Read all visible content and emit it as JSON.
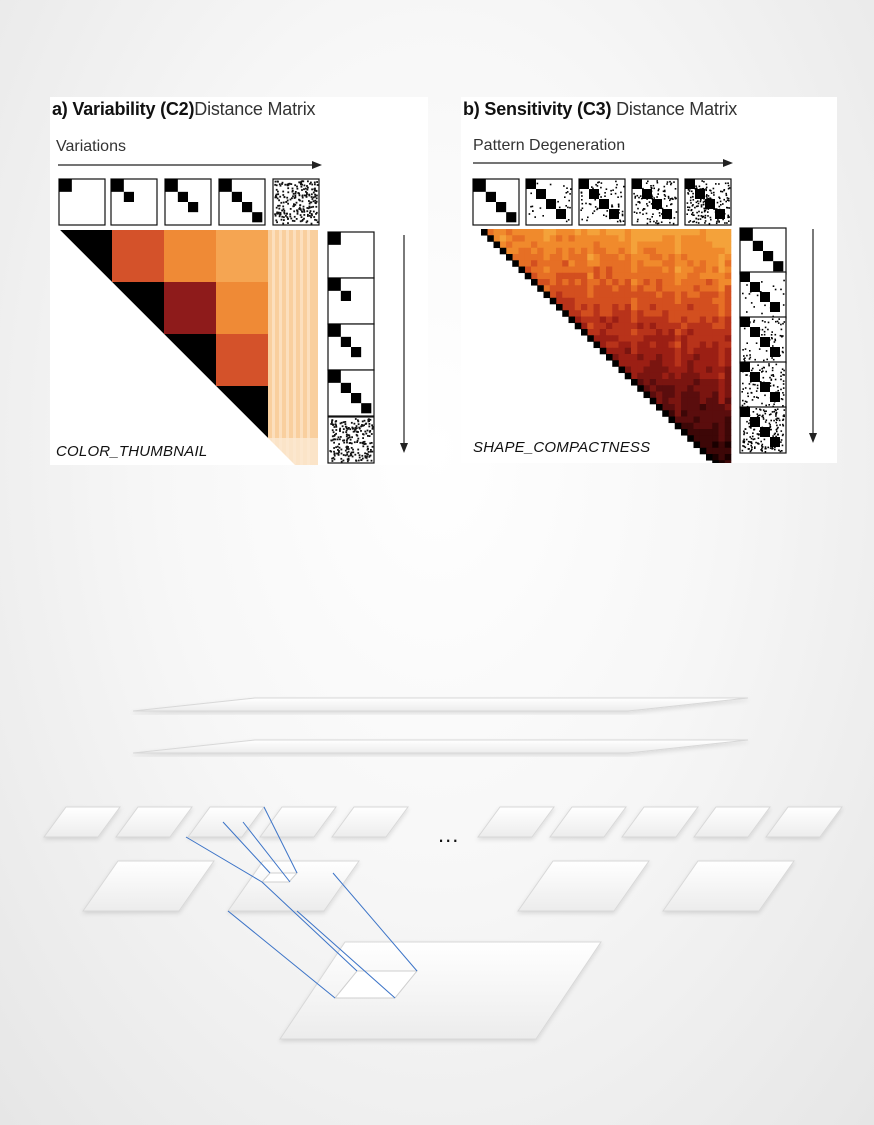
{
  "panel_a": {
    "title_letter": "a)",
    "title_bold": "Variability (C2)",
    "title_rest": "Distance Matrix",
    "axis_label": "Variations",
    "feature_label": "COLOR_THUMBNAIL",
    "colors": {
      "dark": "#000000",
      "red": "#8e1b1b",
      "orange_red": "#d4522a",
      "orange": "#ef8a36",
      "light_orange": "#f5a552",
      "pale": "#f9cf9e"
    }
  },
  "panel_b": {
    "title_letter": "b)",
    "title_bold": "Sensitivity (C3)",
    "title_rest": "Distance Matrix",
    "axis_label": "Pattern Degeneration",
    "feature_label": "SHAPE_COMPACTNESS"
  },
  "hierarchy": {
    "ellipsis": "...",
    "link_color": "#3b73c7"
  }
}
